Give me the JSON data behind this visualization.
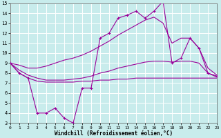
{
  "xlabel": "Windchill (Refroidissement éolien,°C)",
  "background_color": "#c8ecec",
  "grid_color": "#ffffff",
  "line_color": "#990099",
  "xlim": [
    0,
    23
  ],
  "ylim": [
    3,
    15
  ],
  "xticks": [
    0,
    1,
    2,
    3,
    4,
    5,
    6,
    7,
    8,
    9,
    10,
    11,
    12,
    13,
    14,
    15,
    16,
    17,
    18,
    19,
    20,
    21,
    22,
    23
  ],
  "yticks": [
    3,
    4,
    5,
    6,
    7,
    8,
    9,
    10,
    11,
    12,
    13,
    14,
    15
  ],
  "line1_x": [
    0,
    1,
    2,
    3,
    4,
    5,
    6,
    7,
    8,
    9,
    10,
    11,
    12,
    13,
    14,
    15,
    16,
    17,
    18,
    19,
    20,
    21,
    22,
    23
  ],
  "line1_y": [
    9.0,
    8.0,
    7.5,
    7.2,
    7.1,
    7.1,
    7.1,
    7.1,
    7.2,
    7.2,
    7.3,
    7.3,
    7.4,
    7.4,
    7.5,
    7.5,
    7.5,
    7.5,
    7.5,
    7.5,
    7.5,
    7.5,
    7.5,
    7.5
  ],
  "line2_x": [
    0,
    1,
    2,
    3,
    4,
    5,
    6,
    7,
    8,
    9,
    10,
    11,
    12,
    13,
    14,
    15,
    16,
    17,
    18,
    19,
    20,
    21,
    22,
    23
  ],
  "line2_y": [
    9.0,
    8.3,
    7.8,
    7.5,
    7.3,
    7.3,
    7.3,
    7.4,
    7.5,
    7.7,
    8.0,
    8.2,
    8.5,
    8.7,
    8.9,
    9.1,
    9.2,
    9.2,
    9.1,
    9.2,
    9.2,
    9.0,
    8.0,
    7.6
  ],
  "line3_x": [
    0,
    1,
    2,
    3,
    4,
    5,
    6,
    7,
    8,
    9,
    10,
    11,
    12,
    13,
    14,
    15,
    16,
    17,
    18,
    19,
    20,
    21,
    22,
    23
  ],
  "line3_y": [
    9.0,
    8.8,
    8.5,
    8.5,
    8.7,
    9.0,
    9.3,
    9.5,
    9.8,
    10.2,
    10.7,
    11.2,
    11.8,
    12.3,
    12.8,
    13.3,
    13.6,
    13.0,
    11.0,
    11.5,
    11.5,
    10.5,
    8.5,
    7.8
  ],
  "line4_x": [
    0,
    1,
    2,
    3,
    4,
    5,
    6,
    7,
    8,
    9,
    10,
    11,
    12,
    13,
    14,
    15,
    16,
    17,
    18,
    19,
    20,
    21,
    22,
    23
  ],
  "line4_y": [
    9.0,
    8.0,
    7.5,
    4.0,
    4.0,
    4.5,
    3.5,
    3.0,
    6.5,
    6.5,
    11.5,
    12.0,
    13.5,
    13.8,
    14.2,
    13.5,
    14.2,
    15.2,
    9.0,
    9.5,
    11.5,
    10.5,
    8.0,
    7.7
  ]
}
